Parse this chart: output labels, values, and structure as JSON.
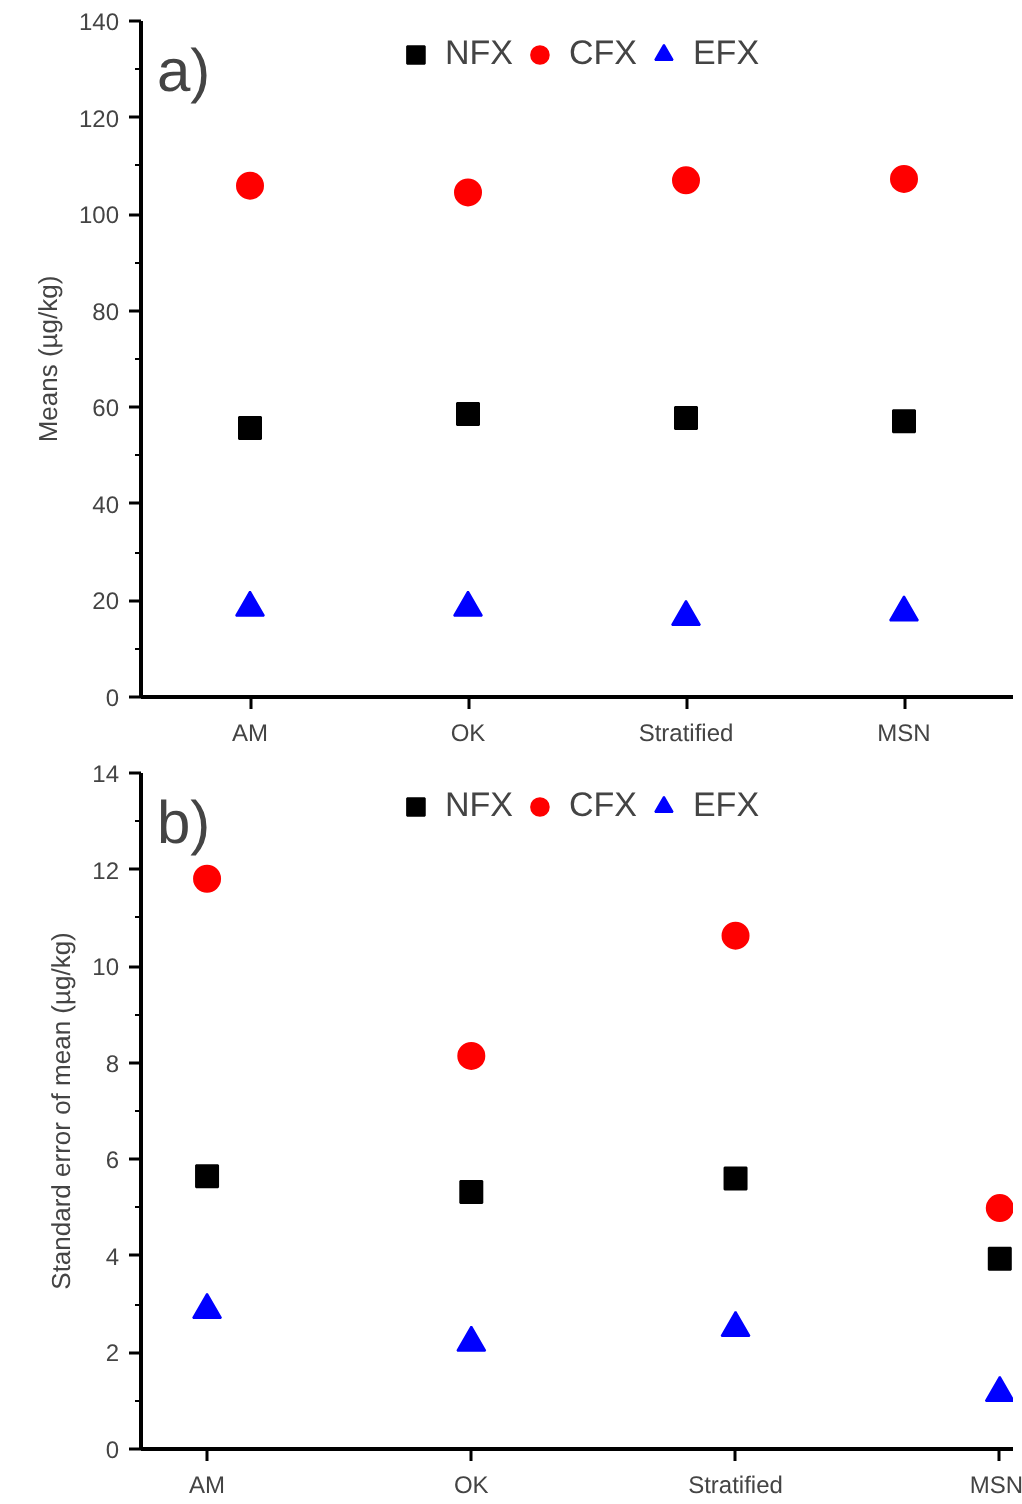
{
  "chart_data": [
    {
      "type": "scatter",
      "ylabel": "Means (µg/kg)",
      "annotations": [
        "a)"
      ],
      "categories": [
        "AM",
        "OK",
        "Stratified",
        "MSN"
      ],
      "ylim": [
        0,
        140
      ],
      "yticks": [
        0,
        20,
        40,
        60,
        80,
        100,
        120,
        140
      ],
      "grid": false,
      "legend": "top",
      "series": [
        {
          "name": "NFX",
          "color": "#000000",
          "marker": "square",
          "values": [
            55.7,
            58.6,
            57.8,
            57.1
          ]
        },
        {
          "name": "CFX",
          "color": "#ff0000",
          "marker": "circle",
          "values": [
            105.9,
            104.5,
            107.0,
            107.3
          ]
        },
        {
          "name": "EFX",
          "color": "#0000ff",
          "marker": "triangle",
          "values": [
            18.5,
            18.5,
            16.6,
            17.5
          ]
        }
      ]
    },
    {
      "type": "scatter",
      "ylabel": "Standard error of mean (µg/kg)",
      "annotations": [
        "b)"
      ],
      "categories": [
        "AM",
        "OK",
        "Stratified",
        "MSN"
      ],
      "ylim": [
        0,
        14
      ],
      "yticks": [
        0,
        2,
        4,
        6,
        8,
        10,
        12,
        14
      ],
      "grid": false,
      "legend": "top",
      "series": [
        {
          "name": "NFX",
          "color": "#000000",
          "marker": "square",
          "values": [
            5.65,
            5.32,
            5.6,
            3.94
          ]
        },
        {
          "name": "CFX",
          "color": "#ff0000",
          "marker": "circle",
          "values": [
            11.81,
            8.14,
            10.63,
            4.99
          ]
        },
        {
          "name": "EFX",
          "color": "#0000ff",
          "marker": "triangle",
          "values": [
            2.88,
            2.2,
            2.51,
            1.16
          ]
        }
      ]
    }
  ]
}
